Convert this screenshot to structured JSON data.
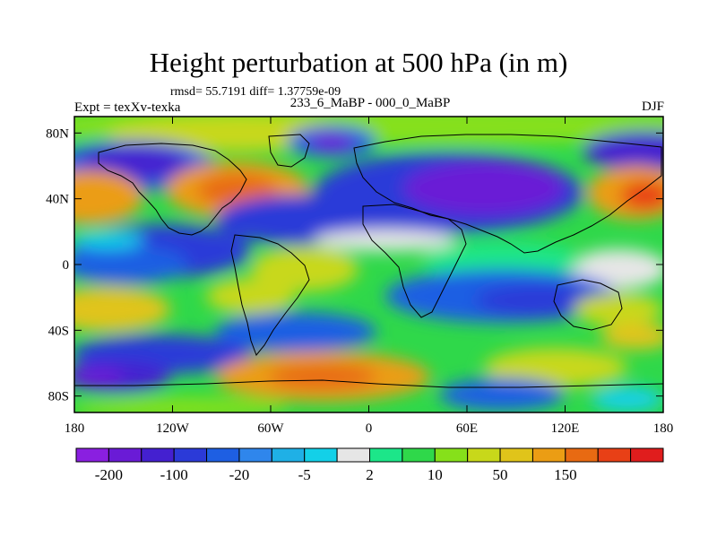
{
  "title": "Height perturbation at 500 hPa (in m)",
  "stats_line": "rmsd= 55.7191 diff= 1.37759e-09",
  "left_label": "Expt = texXv-texka",
  "center_label": "233_6_MaBP - 000_0_MaBP",
  "right_label": "DJF",
  "axes": {
    "lat_ticks": [
      {
        "lat": 80,
        "label": "80N"
      },
      {
        "lat": 40,
        "label": "40N"
      },
      {
        "lat": 0,
        "label": "0"
      },
      {
        "lat": -40,
        "label": "40S"
      },
      {
        "lat": -80,
        "label": "80S"
      }
    ],
    "lon_ticks": [
      {
        "lon": -180,
        "label": "180"
      },
      {
        "lon": -120,
        "label": "120W"
      },
      {
        "lon": -60,
        "label": "60W"
      },
      {
        "lon": 0,
        "label": "0"
      },
      {
        "lon": 60,
        "label": "60E"
      },
      {
        "lon": 120,
        "label": "120E"
      },
      {
        "lon": 180,
        "label": "180"
      }
    ],
    "lon_range": [
      -180,
      180
    ],
    "lat_range": [
      -90,
      90
    ]
  },
  "colorbar": {
    "colors": [
      "#8a1fe0",
      "#6a1bd6",
      "#4420d0",
      "#2b3ad8",
      "#1e5fe3",
      "#2f86ec",
      "#1fb0e6",
      "#13d0e8",
      "#e6e6e6",
      "#1ce689",
      "#2fd84a",
      "#86e01a",
      "#c8d81a",
      "#e0c41a",
      "#eb9d14",
      "#e86a12",
      "#e84016",
      "#e01d1d"
    ],
    "labeled_boundaries": [
      {
        "index": 1,
        "label": "-200"
      },
      {
        "index": 3,
        "label": "-100"
      },
      {
        "index": 5,
        "label": "-20"
      },
      {
        "index": 7,
        "label": "-5"
      },
      {
        "index": 9,
        "label": "2"
      },
      {
        "index": 11,
        "label": "10"
      },
      {
        "index": 13,
        "label": "50"
      },
      {
        "index": 15,
        "label": "150"
      }
    ]
  },
  "field_colors": {
    "neutral": "#e6e6e6",
    "deep_negative": "#4420d0",
    "moderate_negative": "#1e5fe3",
    "weak_negative": "#13d0e8",
    "weak_positive": "#2fd84a",
    "moderate_positive": "#c8d81a",
    "strong_positive": "#eb9d14",
    "very_strong_positive": "#e86a12"
  }
}
